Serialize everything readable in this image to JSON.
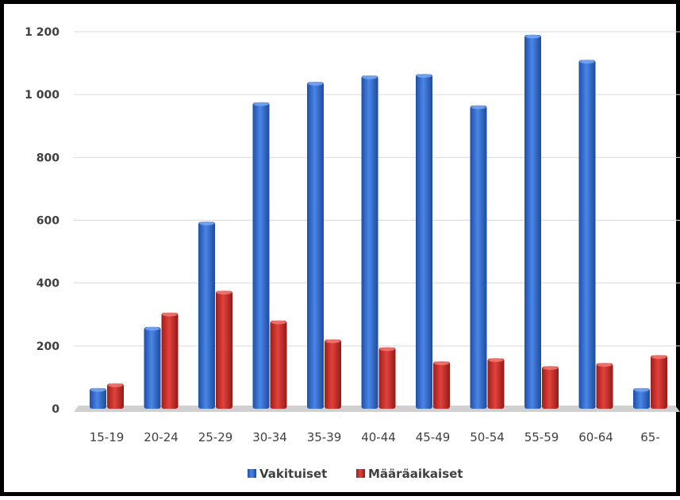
{
  "chart_data": {
    "type": "bar",
    "categories": [
      "15-19",
      "20-24",
      "25-29",
      "30-34",
      "35-39",
      "40-44",
      "45-49",
      "50-54",
      "55-59",
      "60-64",
      "65-"
    ],
    "series": [
      {
        "name": "Vakituiset",
        "color": "#2f6bd3",
        "values": [
          65,
          260,
          595,
          975,
          1040,
          1060,
          1065,
          965,
          1190,
          1110,
          65
        ]
      },
      {
        "name": "Määräaikaiset",
        "color": "#cc2a25",
        "values": [
          80,
          305,
          375,
          280,
          220,
          195,
          150,
          160,
          135,
          145,
          170
        ]
      }
    ],
    "y_ticks": [
      "0",
      "200",
      "400",
      "600",
      "800",
      "1 000",
      "1 200"
    ],
    "y_tick_values": [
      0,
      200,
      400,
      600,
      800,
      1000,
      1200
    ],
    "ylim": [
      0,
      1200
    ],
    "grid": true,
    "legend_position": "bottom",
    "title": "",
    "xlabel": "",
    "ylabel": ""
  }
}
